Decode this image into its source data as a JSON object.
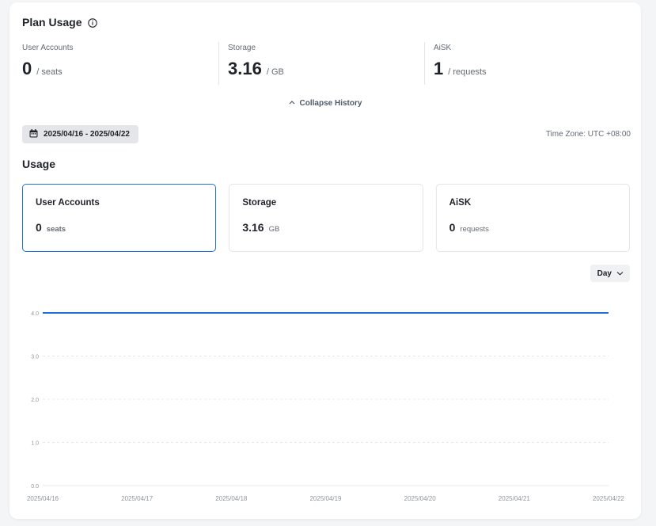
{
  "plan": {
    "title": "Plan Usage",
    "stats": [
      {
        "label": "User Accounts",
        "value": "0",
        "unit": "/ seats"
      },
      {
        "label": "Storage",
        "value": "3.16",
        "unit": "/ GB"
      },
      {
        "label": "AiSK",
        "value": "1",
        "unit": "/ requests"
      }
    ],
    "collapse_label": "Collapse History"
  },
  "filters": {
    "date_range": "2025/04/16 - 2025/04/22",
    "timezone": "Time Zone: UTC +08:00"
  },
  "usage": {
    "title": "Usage",
    "cards": [
      {
        "name": "User Accounts",
        "value": "0",
        "unit": "seats"
      },
      {
        "name": "Storage",
        "value": "3.16",
        "unit": "GB"
      },
      {
        "name": "AiSK",
        "value": "0",
        "unit": "requests"
      }
    ],
    "granularity": "Day"
  },
  "colors": {
    "accent": "#1e6fd9",
    "line": "#1e6fd9"
  },
  "chart_data": {
    "type": "line",
    "x": [
      "2025/04/16",
      "2025/04/17",
      "2025/04/18",
      "2025/04/19",
      "2025/04/20",
      "2025/04/21",
      "2025/04/22"
    ],
    "yticks": [
      "0.0",
      "1.0",
      "2.0",
      "3.0",
      "4.0"
    ],
    "ylim": [
      0,
      4
    ],
    "series": [
      {
        "values": [
          4,
          4,
          4,
          4,
          4,
          4,
          4
        ]
      }
    ],
    "grid": true
  }
}
